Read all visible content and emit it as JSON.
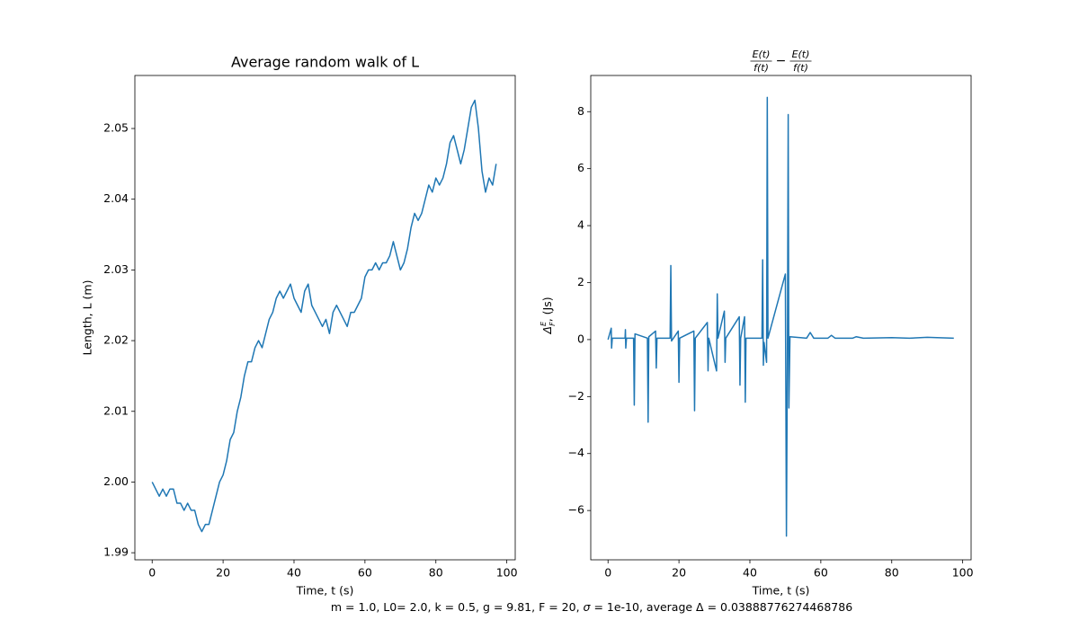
{
  "chart_data": [
    {
      "type": "line",
      "title": "Average random walk of L",
      "xlabel": "Time, t (s)",
      "ylabel": "Length, L (m)",
      "color": "#1f77b4",
      "x": [
        0,
        1,
        2,
        3,
        4,
        5,
        6,
        7,
        8,
        9,
        10,
        11,
        12,
        13,
        14,
        15,
        16,
        17,
        18,
        19,
        20,
        21,
        22,
        23,
        24,
        25,
        26,
        27,
        28,
        29,
        30,
        31,
        32,
        33,
        34,
        35,
        36,
        37,
        38,
        39,
        40,
        41,
        42,
        43,
        44,
        45,
        46,
        47,
        48,
        49,
        50,
        51,
        52,
        53,
        54,
        55,
        56,
        57,
        58,
        59,
        60,
        61,
        62,
        63,
        64,
        65,
        66,
        67,
        68,
        69,
        70,
        71,
        72,
        73,
        74,
        75,
        76,
        77,
        78,
        79,
        80,
        81,
        82,
        83,
        84,
        85,
        86,
        87,
        88,
        89,
        90,
        91,
        92,
        93,
        94,
        95,
        96,
        97
      ],
      "values": [
        2.0,
        1.999,
        1.998,
        1.999,
        1.998,
        1.999,
        1.999,
        1.997,
        1.997,
        1.996,
        1.997,
        1.996,
        1.996,
        1.994,
        1.993,
        1.994,
        1.994,
        1.996,
        1.998,
        2.0,
        2.001,
        2.003,
        2.006,
        2.007,
        2.01,
        2.012,
        2.015,
        2.017,
        2.017,
        2.019,
        2.02,
        2.019,
        2.021,
        2.023,
        2.024,
        2.026,
        2.027,
        2.026,
        2.027,
        2.028,
        2.026,
        2.025,
        2.024,
        2.027,
        2.028,
        2.025,
        2.024,
        2.023,
        2.022,
        2.023,
        2.021,
        2.024,
        2.025,
        2.024,
        2.023,
        2.022,
        2.024,
        2.024,
        2.025,
        2.026,
        2.029,
        2.03,
        2.03,
        2.031,
        2.03,
        2.031,
        2.031,
        2.032,
        2.034,
        2.032,
        2.03,
        2.031,
        2.033,
        2.036,
        2.038,
        2.037,
        2.038,
        2.04,
        2.042,
        2.041,
        2.043,
        2.042,
        2.043,
        2.045,
        2.048,
        2.049,
        2.047,
        2.045,
        2.047,
        2.05,
        2.053,
        2.054,
        2.05,
        2.044,
        2.041,
        2.043,
        2.042,
        2.045
      ],
      "xlim": [
        -4.875,
        102.375
      ],
      "xticks": [
        0,
        20,
        40,
        60,
        80,
        100
      ],
      "ylim": [
        1.989,
        2.0575
      ],
      "yticks": [
        1.99,
        {
          "value": 2.0,
          "label": "2.00"
        },
        2.01,
        2.02,
        2.03,
        2.04,
        2.05
      ]
    },
    {
      "type": "line",
      "title": {
        "num1": "E(t)",
        "den1": "f(t)",
        "op": "−",
        "num2": "E(t)",
        "den2": "f(t)"
      },
      "xlabel": "Time, t (s)",
      "ylabel": {
        "symbol": "Δ",
        "sup": "E",
        "sub": "F",
        "rest": ", (Js)"
      },
      "color": "#1f77b4",
      "x": [
        0,
        0.9,
        1.0,
        1.2,
        4.8,
        4.9,
        5.0,
        5.2,
        7.2,
        7.4,
        7.6,
        11.1,
        11.3,
        11.5,
        13.4,
        13.6,
        13.8,
        17.5,
        17.7,
        17.9,
        19.8,
        20.0,
        20.2,
        24.2,
        24.4,
        24.6,
        28.0,
        28.2,
        28.4,
        30.6,
        30.8,
        31.0,
        32.8,
        33.0,
        33.2,
        37.0,
        37.2,
        37.4,
        38.5,
        38.7,
        38.9,
        43.4,
        43.6,
        43.8,
        44.0,
        44.7,
        44.9,
        45.1,
        50.0,
        50.3,
        50.6,
        50.8,
        51.0,
        51.3,
        56,
        57,
        58,
        62,
        63,
        64,
        69,
        70,
        72,
        80,
        85,
        90,
        97.5
      ],
      "values": [
        0,
        0.4,
        -0.3,
        0.05,
        0.05,
        0.35,
        -0.3,
        0.05,
        0.05,
        -2.3,
        0.2,
        0.05,
        -2.9,
        0.1,
        0.3,
        -1.0,
        0.05,
        0.05,
        2.6,
        -0.05,
        0.3,
        -1.5,
        0.05,
        0.3,
        -2.5,
        0.05,
        0.6,
        -1.1,
        0.05,
        -1.1,
        1.6,
        0.05,
        1.0,
        -0.8,
        0.05,
        0.8,
        -1.6,
        0.05,
        0.8,
        -2.2,
        0.05,
        0.05,
        2.8,
        -0.9,
        -0.1,
        -0.8,
        8.5,
        0.05,
        2.3,
        -6.9,
        0.2,
        7.9,
        -2.4,
        0.1,
        0.05,
        0.25,
        0.05,
        0.05,
        0.15,
        0.05,
        0.05,
        0.1,
        0.05,
        0.07,
        0.05,
        0.08,
        0.05
      ],
      "xlim": [
        -4.875,
        102.375
      ],
      "xticks": [
        0,
        20,
        40,
        60,
        80,
        100
      ],
      "ylim": [
        -7.73,
        9.27
      ],
      "yticks": [
        {
          "value": -6,
          "label": "−6"
        },
        {
          "value": -4,
          "label": "−4"
        },
        {
          "value": -2,
          "label": "−2"
        },
        0,
        2,
        4,
        6,
        8
      ]
    }
  ],
  "caption": {
    "text1": "m = 1.0, L0= 2.0, k = 0.5, g = 9.81, F = 20, ",
    "sigma": "σ",
    "text2": " = 1e-10, average Δ = 0.03888776274468786"
  }
}
